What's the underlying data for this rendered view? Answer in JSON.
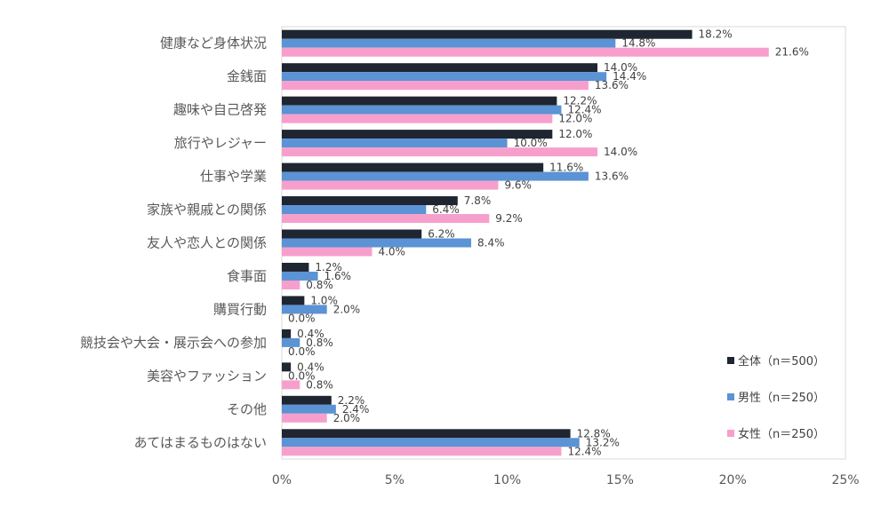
{
  "chart_data": {
    "type": "bar",
    "orientation": "horizontal",
    "categories": [
      "健康など身体状況",
      "金銭面",
      "趣味や自己啓発",
      "旅行やレジャー",
      "仕事や学業",
      "家族や親戚との関係",
      "友人や恋人との関係",
      "食事面",
      "購買行動",
      "競技会や大会・展示会への参加",
      "美容やファッション",
      "その他",
      "あてはまるものはない"
    ],
    "series": [
      {
        "name": "全体（n＝500）",
        "color": "#1f2631",
        "values": [
          18.2,
          14.0,
          12.2,
          12.0,
          11.6,
          7.8,
          6.2,
          1.2,
          1.0,
          0.4,
          0.4,
          2.2,
          12.8
        ]
      },
      {
        "name": "男性（n＝250）",
        "color": "#5b93d4",
        "values": [
          14.8,
          14.4,
          12.4,
          10.0,
          13.6,
          6.4,
          8.4,
          1.6,
          2.0,
          0.8,
          0.0,
          2.4,
          13.2
        ]
      },
      {
        "name": "女性（n＝250）",
        "color": "#f79fcc",
        "values": [
          21.6,
          13.6,
          12.0,
          14.0,
          9.6,
          9.2,
          4.0,
          0.8,
          0.0,
          0.0,
          0.8,
          2.0,
          12.4
        ]
      }
    ],
    "xlim": [
      0,
      25
    ],
    "x_ticks": [
      0,
      5,
      10,
      15,
      20,
      25
    ],
    "tick_suffix": "%",
    "value_suffix": "%",
    "legend_position": "right-bottom",
    "grid": false
  }
}
